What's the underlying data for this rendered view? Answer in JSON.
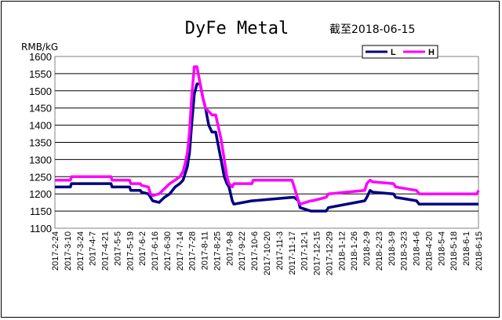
{
  "chart_data": {
    "type": "line",
    "title": "DyFe Metal",
    "subtitle": "截至2018-06-15",
    "ylabel": "RMB/kG",
    "ylim": [
      1100,
      1600
    ],
    "yticks": [
      1100,
      1150,
      1200,
      1250,
      1300,
      1350,
      1400,
      1450,
      1500,
      1550,
      1600
    ],
    "xlim": [
      0,
      79.3
    ],
    "categories": [
      "2017-2-24",
      "2017-3-10",
      "2017-3-24",
      "2017-4-7",
      "2017-4-21",
      "2017-5-5",
      "2017-5-19",
      "2017-6-2",
      "2017-6-16",
      "2017-6-30",
      "2017-7-14",
      "2017-7-28",
      "2017-8-11",
      "2017-8-25",
      "2017-9-8",
      "2017-9-22",
      "2017-10-6",
      "2017-10-20",
      "2017-11-3",
      "2017-11-17",
      "2017-12-1",
      "2017-12-15",
      "2017-12-29",
      "2018-1-12",
      "2018-1-26",
      "2018-2-9",
      "2018-2-23",
      "2018-3-9",
      "2018-3-23",
      "2018-4-6",
      "2018-4-20",
      "2018-5-4",
      "2018-5-18",
      "2018-6-1",
      "2018-6-15"
    ],
    "grid": true,
    "legend_position": "top-right",
    "series": [
      {
        "name": "L",
        "color": "#000080",
        "x": [
          0,
          2.9,
          3.1,
          10.5,
          10.7,
          14.0,
          14.2,
          16.0,
          16.2,
          17.5,
          17.9,
          18.3,
          19.5,
          20.5,
          21.5,
          22.5,
          23.4,
          24.0,
          24.4,
          24.8,
          25.2,
          25.6,
          26.1,
          26.6,
          27.2,
          27.7,
          28.2,
          28.8,
          29.4,
          29.8,
          30.1,
          31.1,
          31.7,
          32.2,
          32.6,
          33.2,
          33.5,
          36.9,
          37.1,
          44.4,
          44.8,
          45.6,
          45.9,
          47.9,
          48.2,
          50.8,
          51.2,
          58.0,
          58.4,
          59.0,
          59.5,
          63.4,
          63.8,
          67.7,
          68.2,
          79.3
        ],
        "values": [
          1220,
          1220,
          1230,
          1230,
          1220,
          1220,
          1210,
          1210,
          1205,
          1200,
          1190,
          1180,
          1175,
          1190,
          1200,
          1220,
          1230,
          1240,
          1260,
          1280,
          1320,
          1400,
          1490,
          1520,
          1520,
          1480,
          1450,
          1400,
          1380,
          1380,
          1380,
          1300,
          1250,
          1230,
          1220,
          1180,
          1170,
          1180,
          1180,
          1190,
          1190,
          1180,
          1160,
          1150,
          1150,
          1150,
          1160,
          1180,
          1190,
          1210,
          1205,
          1200,
          1190,
          1180,
          1170,
          1170
        ]
      },
      {
        "name": "H",
        "color": "#ff00ff",
        "x": [
          0,
          2.9,
          3.1,
          10.5,
          10.7,
          14.0,
          14.2,
          16.0,
          16.2,
          17.5,
          17.9,
          18.3,
          19.5,
          20.5,
          21.5,
          22.5,
          23.4,
          24.0,
          24.4,
          24.8,
          25.2,
          25.6,
          26.1,
          26.6,
          27.2,
          27.7,
          28.2,
          28.8,
          29.4,
          29.8,
          30.1,
          31.1,
          31.7,
          32.2,
          32.6,
          33.2,
          33.5,
          36.9,
          37.1,
          44.4,
          44.8,
          45.6,
          45.9,
          47.9,
          48.2,
          50.8,
          51.2,
          58.0,
          58.4,
          59.0,
          59.5,
          63.4,
          63.8,
          67.7,
          68.2,
          79.0,
          79.3
        ],
        "values": [
          1240,
          1240,
          1250,
          1250,
          1240,
          1240,
          1230,
          1230,
          1225,
          1220,
          1200,
          1195,
          1200,
          1215,
          1230,
          1240,
          1250,
          1265,
          1290,
          1320,
          1380,
          1480,
          1570,
          1570,
          1520,
          1480,
          1450,
          1440,
          1430,
          1430,
          1430,
          1360,
          1300,
          1250,
          1230,
          1220,
          1230,
          1230,
          1240,
          1240,
          1220,
          1180,
          1170,
          1180,
          1180,
          1190,
          1200,
          1210,
          1230,
          1240,
          1235,
          1230,
          1220,
          1210,
          1200,
          1200,
          1210
        ]
      }
    ]
  }
}
